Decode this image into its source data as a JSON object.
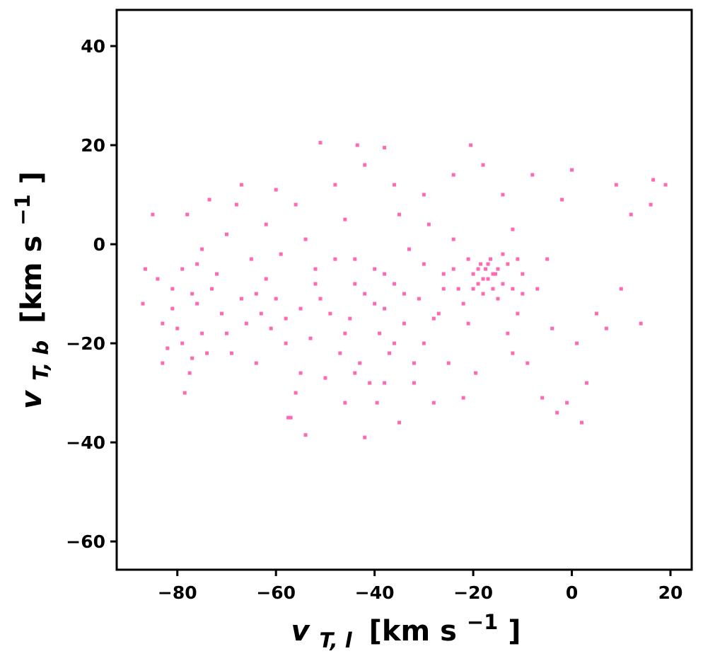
{
  "chart_data": {
    "type": "scatter",
    "title": "",
    "xlabel": "v_{T,l} [km s^{-1}]",
    "ylabel": "v_{T,b} [km s^{-1}]",
    "xlabel_parts": {
      "var": "v",
      "sub": "T, l",
      "units": "[km s",
      "exp": "−1",
      "close": "]"
    },
    "ylabel_parts": {
      "var": "v",
      "sub": "T, b",
      "units": "[km s",
      "exp": "−1",
      "close": "]"
    },
    "xlim": [
      -92.3,
      24.3
    ],
    "ylim": [
      -65.7,
      47.3
    ],
    "xticks": [
      -80,
      -60,
      -40,
      -20,
      0,
      20
    ],
    "xtick_labels": [
      "−80",
      "−60",
      "−40",
      "−20",
      "0",
      "20"
    ],
    "yticks": [
      -60,
      -40,
      -20,
      0,
      20,
      40
    ],
    "ytick_labels": [
      "−60",
      "−40",
      "−20",
      "0",
      "20",
      "40"
    ],
    "grid": false,
    "marker": "square",
    "color": "#ff69b4",
    "series": [
      {
        "name": "",
        "points": [
          [
            -87,
            -12
          ],
          [
            -86.5,
            -5
          ],
          [
            -85,
            6
          ],
          [
            -84,
            -7
          ],
          [
            -83,
            -24
          ],
          [
            -83,
            -16
          ],
          [
            -82,
            -21
          ],
          [
            -81,
            -13
          ],
          [
            -81,
            -9
          ],
          [
            -80,
            -17
          ],
          [
            -79,
            -5
          ],
          [
            -79,
            -20
          ],
          [
            -78.5,
            -30
          ],
          [
            -78,
            6
          ],
          [
            -77.5,
            -26
          ],
          [
            -77,
            -10
          ],
          [
            -77,
            -23
          ],
          [
            -76,
            -12
          ],
          [
            -76,
            -4
          ],
          [
            -75,
            -18
          ],
          [
            -75,
            -1
          ],
          [
            -74,
            -22
          ],
          [
            -73.5,
            9
          ],
          [
            -73,
            -9
          ],
          [
            -72,
            -6
          ],
          [
            -71,
            -14
          ],
          [
            -70,
            2
          ],
          [
            -69,
            -22
          ],
          [
            -68,
            8
          ],
          [
            -67,
            -11
          ],
          [
            -67,
            12
          ],
          [
            -66,
            -16
          ],
          [
            -65,
            -3
          ],
          [
            -64,
            -24
          ],
          [
            -63,
            -14
          ],
          [
            -62,
            -7
          ],
          [
            -61,
            -17
          ],
          [
            -60,
            11
          ],
          [
            -60,
            -11
          ],
          [
            -59,
            -2
          ],
          [
            -58,
            -20
          ],
          [
            -57.5,
            -35
          ],
          [
            -57,
            -35
          ],
          [
            -56,
            8
          ],
          [
            -55,
            -13
          ],
          [
            -55,
            -26
          ],
          [
            -54,
            -38.5
          ],
          [
            -54,
            1
          ],
          [
            -53,
            -19
          ],
          [
            -52,
            -5
          ],
          [
            -51,
            20.5
          ],
          [
            -51,
            -11
          ],
          [
            -50,
            -27
          ],
          [
            -49,
            -14
          ],
          [
            -48,
            -3
          ],
          [
            -47,
            -22
          ],
          [
            -46,
            -32
          ],
          [
            -46,
            5
          ],
          [
            -45,
            -15
          ],
          [
            -44,
            -8
          ],
          [
            -43.5,
            20
          ],
          [
            -43,
            -24
          ],
          [
            -42,
            -39
          ],
          [
            -42,
            -10
          ],
          [
            -41,
            -28
          ],
          [
            -40,
            -5
          ],
          [
            -39.5,
            -32
          ],
          [
            -39,
            -18
          ],
          [
            -38,
            19.5
          ],
          [
            -38,
            -13
          ],
          [
            -37,
            -22
          ],
          [
            -36,
            -8
          ],
          [
            -35,
            -36
          ],
          [
            -35,
            6
          ],
          [
            -34,
            -16
          ],
          [
            -33,
            -1
          ],
          [
            -32,
            -28
          ],
          [
            -31,
            -11
          ],
          [
            -30,
            -20
          ],
          [
            -29,
            4
          ],
          [
            -28,
            -32
          ],
          [
            -27,
            -14
          ],
          [
            -26,
            -6
          ],
          [
            -25,
            -24
          ],
          [
            -24,
            1
          ],
          [
            -23,
            -9
          ],
          [
            -22,
            -31
          ],
          [
            -21,
            -16
          ],
          [
            -20.5,
            20
          ],
          [
            -20,
            -6
          ],
          [
            -19.5,
            -26
          ],
          [
            -19,
            -8
          ],
          [
            -18.5,
            -4
          ],
          [
            -18,
            -10
          ],
          [
            -17.5,
            -5
          ],
          [
            -17,
            -7
          ],
          [
            -16.5,
            -3
          ],
          [
            -16,
            -9
          ],
          [
            -15.5,
            -6
          ],
          [
            -15,
            -11
          ],
          [
            -14,
            -2
          ],
          [
            -13,
            -18
          ],
          [
            -12,
            3
          ],
          [
            -11,
            -14
          ],
          [
            -10,
            -6
          ],
          [
            -9,
            -24
          ],
          [
            -8,
            14
          ],
          [
            -7,
            -9
          ],
          [
            -6,
            -31
          ],
          [
            -5,
            -3
          ],
          [
            -4,
            -17
          ],
          [
            -3,
            -34
          ],
          [
            -2,
            9
          ],
          [
            -1,
            -32
          ],
          [
            0,
            15
          ],
          [
            1,
            -20
          ],
          [
            2,
            -36
          ],
          [
            3,
            -28
          ],
          [
            5,
            -14
          ],
          [
            7,
            -17
          ],
          [
            9,
            12
          ],
          [
            10,
            -9
          ],
          [
            12,
            6
          ],
          [
            14,
            -16
          ],
          [
            16,
            8
          ],
          [
            16.5,
            13
          ],
          [
            19,
            12
          ],
          [
            -64,
            -10
          ],
          [
            -58,
            -15
          ],
          [
            -52,
            -8
          ],
          [
            -46,
            -18
          ],
          [
            -44,
            -3
          ],
          [
            -40,
            -12
          ],
          [
            -38,
            -6
          ],
          [
            -36,
            -20
          ],
          [
            -34,
            -10
          ],
          [
            -30,
            -4
          ],
          [
            -28,
            -15
          ],
          [
            -26,
            -9
          ],
          [
            -24,
            -5
          ],
          [
            -22,
            -12
          ],
          [
            -21,
            -3
          ],
          [
            -20,
            -9
          ],
          [
            -19,
            -5
          ],
          [
            -18,
            -7
          ],
          [
            -17,
            -4
          ],
          [
            -16,
            -6
          ],
          [
            -15,
            -5
          ],
          [
            -14,
            -8
          ],
          [
            -13,
            -4
          ],
          [
            -12,
            -9
          ],
          [
            -11,
            -3
          ],
          [
            -10,
            -10
          ],
          [
            -48,
            12
          ],
          [
            -42,
            16
          ],
          [
            -36,
            12
          ],
          [
            -30,
            10
          ],
          [
            -24,
            14
          ],
          [
            -18,
            16
          ],
          [
            -14,
            10
          ],
          [
            -12,
            -22
          ],
          [
            -44,
            -26
          ],
          [
            -38,
            -28
          ],
          [
            -32,
            -24
          ],
          [
            -62,
            4
          ],
          [
            -70,
            -18
          ],
          [
            -56,
            -30
          ]
        ]
      }
    ]
  }
}
